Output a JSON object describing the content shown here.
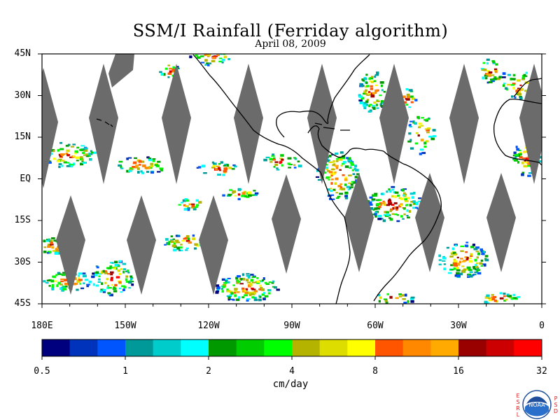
{
  "title": "SSM/I Rainfall (Ferriday algorithm)",
  "subtitle": "April 08, 2009",
  "map": {
    "lat_ticks": [
      {
        "label": "45N",
        "lat": 45
      },
      {
        "label": "30N",
        "lat": 30
      },
      {
        "label": "15N",
        "lat": 15
      },
      {
        "label": "EQ",
        "lat": 0
      },
      {
        "label": "15S",
        "lat": -15
      },
      {
        "label": "30S",
        "lat": -30
      },
      {
        "label": "45S",
        "lat": -45
      }
    ],
    "lon_ticks": [
      {
        "label": "180E",
        "lon": -180
      },
      {
        "label": "150W",
        "lon": -150
      },
      {
        "label": "120W",
        "lon": -120
      },
      {
        "label": "90W",
        "lon": -90
      },
      {
        "label": "60W",
        "lon": -60
      },
      {
        "label": "30W",
        "lon": -30
      },
      {
        "label": "0",
        "lon": 0
      }
    ],
    "lon_range": [
      -180,
      0
    ],
    "lat_range": [
      -45,
      45
    ],
    "swath_gap_color": "#6b6b6b"
  },
  "colorbar": {
    "units": "cm/day",
    "tick_labels": [
      "0.5",
      "1",
      "2",
      "4",
      "8",
      "16",
      "32"
    ],
    "colors": [
      "#00007f",
      "#0033bb",
      "#0055ff",
      "#009999",
      "#00cccc",
      "#00ffff",
      "#009900",
      "#00cc00",
      "#00ff00",
      "#b3b300",
      "#dddd00",
      "#ffff00",
      "#ff5500",
      "#ff8800",
      "#ffaa00",
      "#990000",
      "#cc0000",
      "#ff0000"
    ]
  },
  "logo": {
    "left_letters": "ESRL",
    "right_letters": "PSD",
    "center_text": "NOAA"
  }
}
